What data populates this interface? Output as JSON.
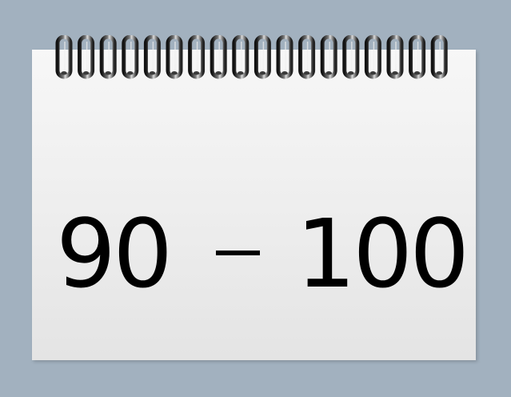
{
  "expression": {
    "left_number": "90",
    "blank": "_",
    "right_number": "100"
  },
  "colors": {
    "background": "#a2b1bf",
    "paper": "#f3f3f3",
    "text": "#000000",
    "rings": "#2e2e2e"
  },
  "icons": [
    "spiral-binding-icon"
  ]
}
